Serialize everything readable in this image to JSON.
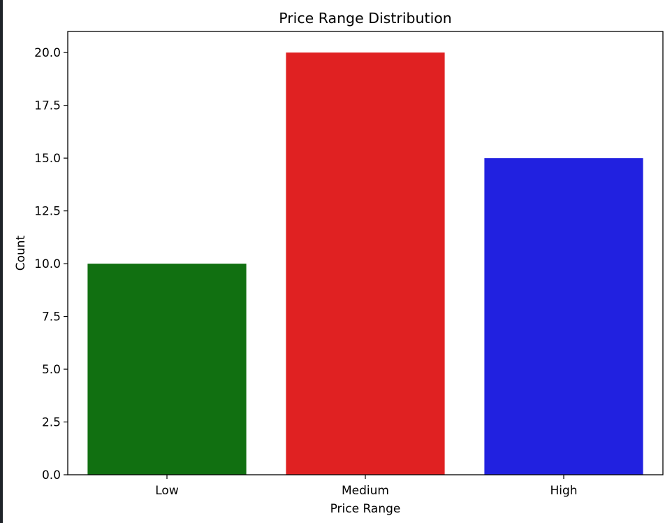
{
  "chart_data": {
    "type": "bar",
    "title": "Price Range Distribution",
    "xlabel": "Price Range",
    "ylabel": "Count",
    "categories": [
      "Low",
      "Medium",
      "High"
    ],
    "values": [
      10,
      20,
      15
    ],
    "colors": [
      "#117011",
      "#e02122",
      "#2121e0"
    ],
    "ylim": [
      0,
      21
    ],
    "yticks": [
      0,
      2.5,
      5,
      7.5,
      10,
      12.5,
      15,
      17.5,
      20
    ],
    "ytick_labels": [
      "0.0",
      "2.5",
      "5.0",
      "7.5",
      "10.0",
      "12.5",
      "15.0",
      "17.5",
      "20.0"
    ],
    "grid": false,
    "legend": "none"
  }
}
